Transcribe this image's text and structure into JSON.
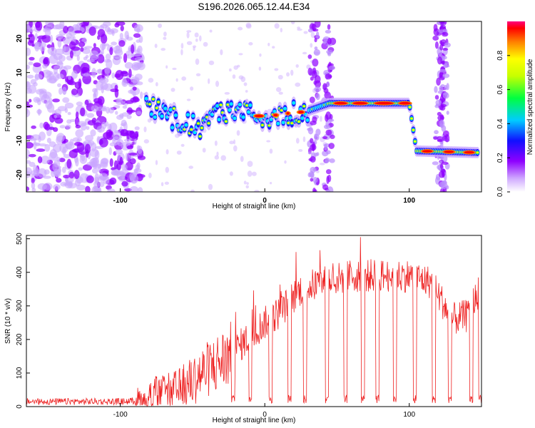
{
  "title": "S196.2026.065.12.44.E34",
  "chart_data": [
    {
      "type": "heatmap",
      "xlabel": "Height of straight line (km)",
      "ylabel": "Frequency (Hz)",
      "xlim": [
        -165,
        150
      ],
      "ylim": [
        -25,
        25
      ],
      "xticks": [
        "-100",
        "0",
        "100"
      ],
      "xtick_values": [
        -100,
        0,
        100
      ],
      "yticks": [
        "20",
        "10",
        "0",
        "-10",
        "-20"
      ],
      "ytick_values": [
        20,
        10,
        0,
        -10,
        -20
      ],
      "colorbar": {
        "label": "Normalized spectral amplitude",
        "range": [
          0,
          1
        ],
        "ticks": [
          "0.0",
          "0.2",
          "0.4",
          "0.6",
          "0.8"
        ],
        "tick_values": [
          0,
          0.2,
          0.4,
          0.6,
          0.8
        ],
        "colors": [
          "#ffffff",
          "#8f00ff",
          "#0000ff",
          "#00ffff",
          "#00ff00",
          "#ffff00",
          "#ff8000",
          "#ff0000",
          "#ff0080"
        ]
      },
      "signal_track": [
        {
          "x": -80,
          "freq": 0
        },
        {
          "x": -60,
          "freq": -4
        },
        {
          "x": -45,
          "freq": -6
        },
        {
          "x": -30,
          "freq": -2
        },
        {
          "x": -15,
          "freq": -2
        },
        {
          "x": 0,
          "freq": -3
        },
        {
          "x": 15,
          "freq": -2
        },
        {
          "x": 28,
          "freq": -1.5
        },
        {
          "x": 45,
          "freq": 1
        },
        {
          "x": 100,
          "freq": 1
        },
        {
          "x": 105,
          "freq": -13
        },
        {
          "x": 150,
          "freq": -13.5
        }
      ]
    },
    {
      "type": "line",
      "xlabel": "Height of straight line (km)",
      "ylabel": "SNR (10 * v/v)",
      "xlim": [
        -165,
        150
      ],
      "ylim": [
        0,
        510
      ],
      "xticks": [
        "-100",
        "0",
        "100"
      ],
      "xtick_values": [
        -100,
        0,
        100
      ],
      "yticks": [
        "0",
        "100",
        "200",
        "300",
        "400",
        "500"
      ],
      "ytick_values": [
        0,
        100,
        200,
        300,
        400,
        500
      ],
      "series_color": "#ee2222",
      "envelope": [
        {
          "x": -165,
          "y": 15
        },
        {
          "x": -100,
          "y": 15
        },
        {
          "x": -85,
          "y": 18
        },
        {
          "x": -75,
          "y": 40
        },
        {
          "x": -60,
          "y": 45
        },
        {
          "x": -40,
          "y": 110
        },
        {
          "x": -25,
          "y": 150
        },
        {
          "x": -10,
          "y": 210
        },
        {
          "x": 0,
          "y": 250
        },
        {
          "x": 10,
          "y": 280
        },
        {
          "x": 25,
          "y": 350
        },
        {
          "x": 40,
          "y": 370
        },
        {
          "x": 60,
          "y": 390
        },
        {
          "x": 80,
          "y": 390
        },
        {
          "x": 100,
          "y": 390
        },
        {
          "x": 115,
          "y": 370
        },
        {
          "x": 130,
          "y": 260
        },
        {
          "x": 140,
          "y": 270
        },
        {
          "x": 150,
          "y": 360
        }
      ],
      "dropouts_km": [
        -22,
        -10,
        4,
        17,
        28,
        43,
        56,
        68,
        78,
        90,
        104,
        117,
        128,
        143,
        149
      ]
    }
  ]
}
